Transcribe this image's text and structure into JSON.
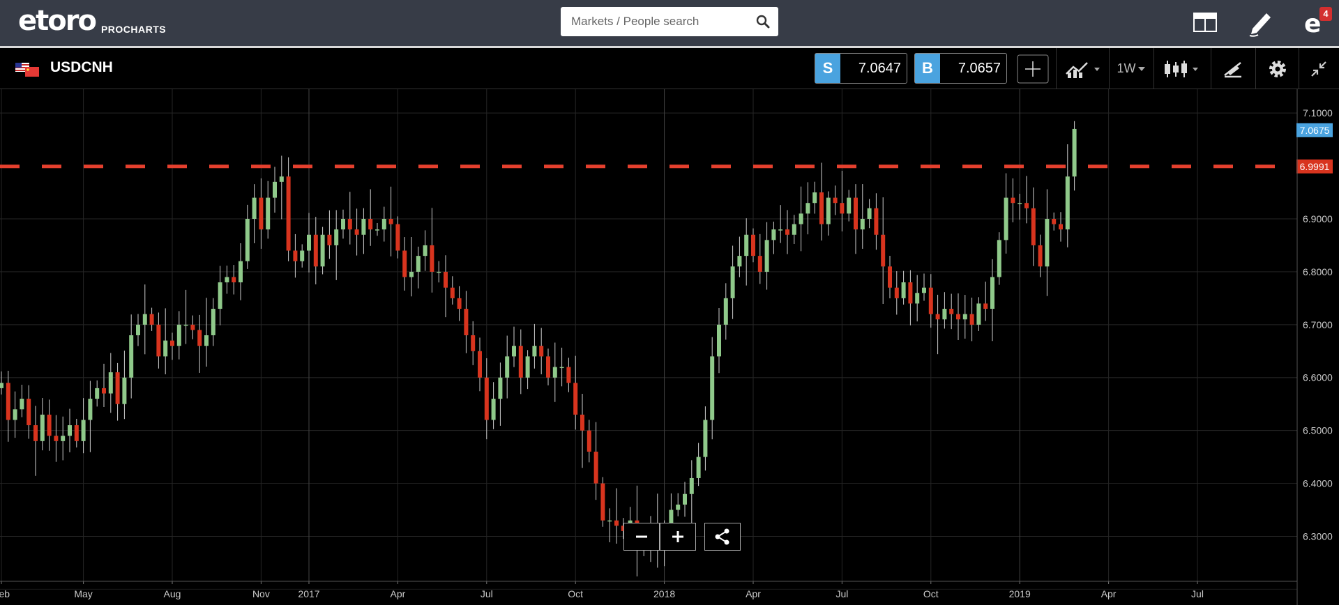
{
  "header": {
    "brand": "etoro",
    "sub_brand": "PROCHARTS",
    "search_placeholder": "Markets / People search",
    "notification_count": "4"
  },
  "toolbar": {
    "symbol": "USDCNH",
    "sell_label": "S",
    "sell_price": "7.0647",
    "buy_label": "B",
    "buy_price": "7.0657",
    "timeframe": "1W"
  },
  "colors": {
    "up": "#8fc98a",
    "down": "#d8341e",
    "accent": "#4aa3df",
    "alert_line": "#e5402e",
    "topbar": "#373c47"
  },
  "chart_data": {
    "type": "candlestick",
    "symbol": "USDCNH",
    "interval": "1W",
    "ylim": [
      6.215,
      7.145
    ],
    "y_ticks": [
      "7.1000",
      "6.9000",
      "6.8000",
      "6.7000",
      "6.6000",
      "6.5000",
      "6.4000",
      "6.3000"
    ],
    "x_ticks": [
      "Feb",
      "May",
      "Aug",
      "Nov",
      "2017",
      "Apr",
      "Jul",
      "Oct",
      "2018",
      "Apr",
      "Jul",
      "Oct",
      "2019",
      "Apr",
      "Jul"
    ],
    "x_tick_week": [
      0,
      12,
      25,
      38,
      45,
      58,
      71,
      84,
      97,
      110,
      123,
      136,
      149,
      162,
      175
    ],
    "current_price_label": "7.0675",
    "current_price": 7.0675,
    "alert_label": "6.9991",
    "alert_price": 6.9991,
    "closes": [
      6.59,
      6.52,
      6.54,
      6.56,
      6.51,
      6.48,
      6.53,
      6.49,
      6.48,
      6.49,
      6.51,
      6.48,
      6.52,
      6.56,
      6.58,
      6.57,
      6.61,
      6.55,
      6.6,
      6.68,
      6.7,
      6.72,
      6.7,
      6.64,
      6.67,
      6.66,
      6.7,
      6.7,
      6.69,
      6.66,
      6.68,
      6.73,
      6.78,
      6.79,
      6.78,
      6.82,
      6.9,
      6.94,
      6.88,
      6.94,
      6.97,
      6.98,
      6.84,
      6.82,
      6.84,
      6.87,
      6.81,
      6.87,
      6.85,
      6.88,
      6.9,
      6.88,
      6.87,
      6.9,
      6.88,
      6.88,
      6.9,
      6.89,
      6.84,
      6.79,
      6.8,
      6.83,
      6.85,
      6.8,
      6.8,
      6.77,
      6.75,
      6.73,
      6.68,
      6.65,
      6.6,
      6.52,
      6.56,
      6.6,
      6.64,
      6.66,
      6.6,
      6.64,
      6.66,
      6.64,
      6.6,
      6.62,
      6.62,
      6.59,
      6.53,
      6.5,
      6.46,
      6.4,
      6.33,
      6.33,
      6.32,
      6.31,
      6.33,
      6.29,
      6.28,
      6.31,
      6.28,
      6.31,
      6.35,
      6.36,
      6.38,
      6.41,
      6.45,
      6.52,
      6.64,
      6.7,
      6.75,
      6.81,
      6.83,
      6.87,
      6.83,
      6.8,
      6.86,
      6.88,
      6.88,
      6.87,
      6.89,
      6.91,
      6.93,
      6.95,
      6.89,
      6.94,
      6.93,
      6.91,
      6.94,
      6.88,
      6.9,
      6.92,
      6.87,
      6.81,
      6.77,
      6.75,
      6.78,
      6.74,
      6.76,
      6.77,
      6.72,
      6.71,
      6.73,
      6.72,
      6.71,
      6.72,
      6.7,
      6.74,
      6.73,
      6.79,
      6.86,
      6.94,
      6.93,
      6.93,
      6.92,
      6.85,
      6.81,
      6.9,
      6.89,
      6.88,
      6.98,
      7.07
    ],
    "open": 6.58
  }
}
